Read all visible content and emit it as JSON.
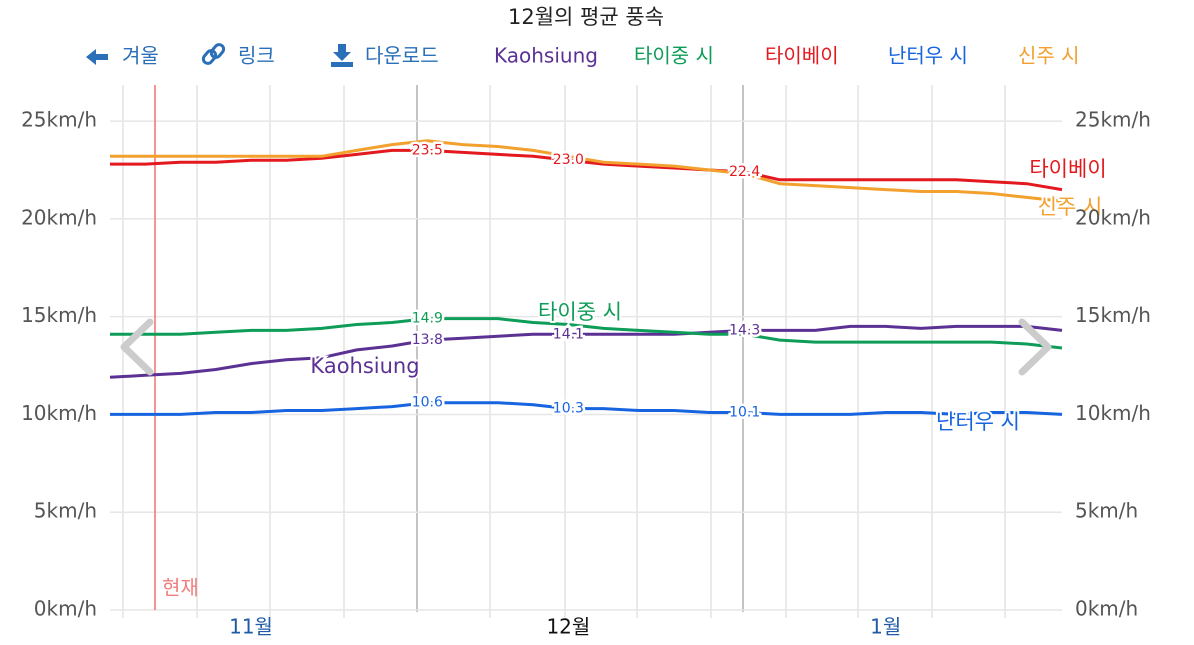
{
  "chart_data": {
    "type": "line",
    "title": "12월의 평균 풍속",
    "toolbar": [
      "겨울",
      "링크",
      "다운로드"
    ],
    "annotation": "현재",
    "categories": [
      null,
      null,
      null,
      null,
      "11월",
      null,
      null,
      null,
      null,
      null,
      null,
      null,
      null,
      "12월",
      null,
      null,
      null,
      null,
      null,
      null,
      null,
      null,
      "1월",
      null,
      null,
      null,
      null,
      null
    ],
    "ylim": [
      0,
      27
    ],
    "yticks": [
      {
        "value": 0,
        "label": "0km/h"
      },
      {
        "value": 5,
        "label": "5km/h"
      },
      {
        "value": 10,
        "label": "10km/h"
      },
      {
        "value": 15,
        "label": "15km/h"
      },
      {
        "value": 20,
        "label": "20km/h"
      },
      {
        "value": 25,
        "label": "25km/h"
      }
    ],
    "grid": true,
    "series": [
      {
        "name": "Kaohsiung",
        "color": "#5b3194",
        "values": [
          11.9,
          12.0,
          12.1,
          12.3,
          12.6,
          12.8,
          12.9,
          13.3,
          13.5,
          13.8,
          13.9,
          14.0,
          14.1,
          14.1,
          14.1,
          14.1,
          14.1,
          14.2,
          14.3,
          14.3,
          14.3,
          14.5,
          14.5,
          14.4,
          14.5,
          14.5,
          14.5,
          14.3
        ],
        "value_labels": [
          null,
          null,
          null,
          null,
          null,
          null,
          null,
          null,
          null,
          "13.8",
          null,
          null,
          null,
          "14.1",
          null,
          null,
          null,
          null,
          "14.3",
          null,
          null,
          null,
          null,
          null,
          null,
          null,
          null,
          null
        ]
      },
      {
        "name": "타이중 시",
        "color": "#0e9d58",
        "values": [
          14.1,
          14.1,
          14.1,
          14.2,
          14.3,
          14.3,
          14.4,
          14.6,
          14.7,
          14.9,
          14.9,
          14.9,
          14.7,
          14.6,
          14.4,
          14.3,
          14.2,
          14.1,
          14.1,
          13.8,
          13.7,
          13.7,
          13.7,
          13.7,
          13.7,
          13.7,
          13.6,
          13.4
        ],
        "value_labels": [
          null,
          null,
          null,
          null,
          null,
          null,
          null,
          null,
          null,
          "14.9",
          null,
          null,
          null,
          null,
          null,
          null,
          null,
          null,
          null,
          null,
          null,
          null,
          null,
          null,
          null,
          null,
          null,
          null
        ]
      },
      {
        "name": "타이베이",
        "color": "#e3191f",
        "values": [
          22.8,
          22.8,
          22.9,
          22.9,
          23.0,
          23.0,
          23.1,
          23.3,
          23.5,
          23.5,
          23.4,
          23.3,
          23.2,
          23.0,
          22.8,
          22.7,
          22.6,
          22.5,
          22.4,
          22.0,
          22.0,
          22.0,
          22.0,
          22.0,
          22.0,
          21.9,
          21.8,
          21.5
        ],
        "value_labels": [
          null,
          null,
          null,
          null,
          null,
          null,
          null,
          null,
          null,
          "23.5",
          null,
          null,
          null,
          "23.0",
          null,
          null,
          null,
          null,
          "22.4",
          null,
          null,
          null,
          null,
          null,
          null,
          null,
          null,
          null
        ]
      },
      {
        "name": "난터우 시",
        "color": "#1764e0",
        "values": [
          10.0,
          10.0,
          10.0,
          10.1,
          10.1,
          10.2,
          10.2,
          10.3,
          10.4,
          10.6,
          10.6,
          10.6,
          10.5,
          10.3,
          10.3,
          10.2,
          10.2,
          10.1,
          10.1,
          10.0,
          10.0,
          10.0,
          10.1,
          10.1,
          10.0,
          10.1,
          10.1,
          10.0
        ],
        "value_labels": [
          null,
          null,
          null,
          null,
          null,
          null,
          null,
          null,
          null,
          "10.6",
          null,
          null,
          null,
          "10.3",
          null,
          null,
          null,
          null,
          "10.1",
          null,
          null,
          null,
          null,
          null,
          null,
          null,
          null,
          null
        ]
      },
      {
        "name": "신주 시",
        "color": "#f2a02e",
        "values": [
          23.2,
          23.2,
          23.2,
          23.2,
          23.2,
          23.2,
          23.2,
          23.5,
          23.8,
          24.0,
          23.8,
          23.7,
          23.5,
          23.2,
          22.9,
          22.8,
          22.7,
          22.5,
          22.3,
          21.8,
          21.7,
          21.6,
          21.5,
          21.4,
          21.4,
          21.3,
          21.1,
          20.9
        ]
      }
    ]
  }
}
